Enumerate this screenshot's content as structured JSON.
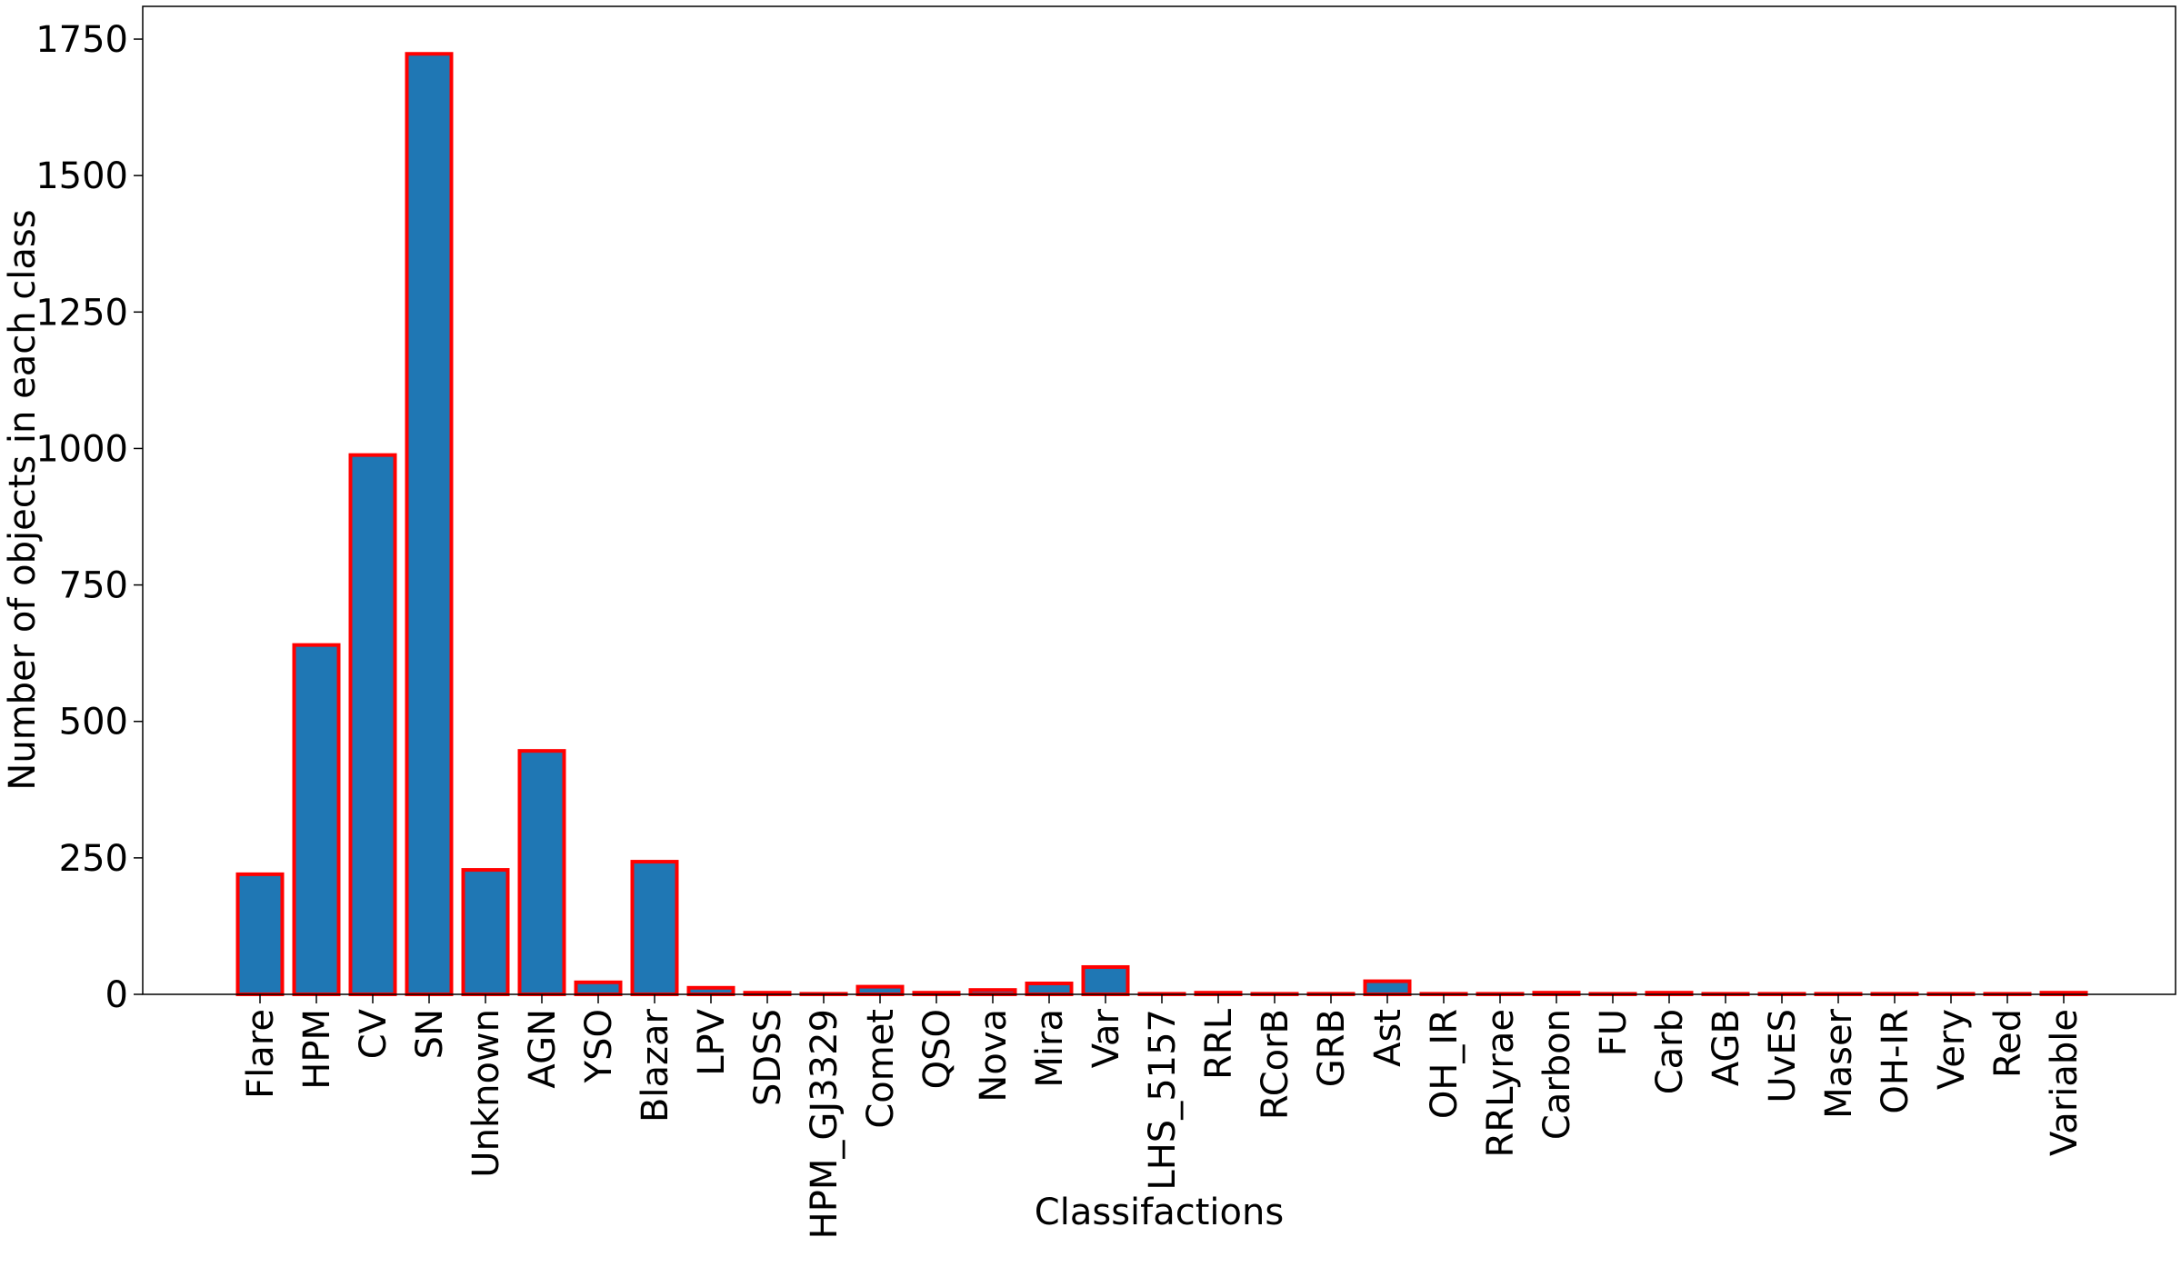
{
  "chart_data": {
    "type": "bar",
    "title": "",
    "xlabel": "Classifactions",
    "ylabel": "Number of objects in each class",
    "ylim": [
      0,
      1810
    ],
    "yticks": [
      0,
      250,
      500,
      750,
      1000,
      1250,
      1500,
      1750
    ],
    "grid": false,
    "colors": {
      "bar_fill": "#1f77b4",
      "bar_edge": "#ff0000"
    },
    "categories": [
      "Flare",
      "HPM",
      "CV",
      "SN",
      "Unknown",
      "AGN",
      "YSO",
      "Blazar",
      "LPV",
      "SDSS",
      "HPM_GJ3329",
      "Comet",
      "QSO",
      "Nova",
      "Mira",
      "Var",
      "LHS_5157",
      "RRL",
      "RCorB",
      "GRB",
      "Ast",
      "OH_IR",
      "RRLyrae",
      "Carbon",
      "FU",
      "Carb",
      "AGB",
      "UvES",
      "Maser",
      "OH-IR",
      "Very",
      "Red",
      "Variable"
    ],
    "values": [
      220,
      640,
      988,
      1723,
      228,
      446,
      22,
      243,
      12,
      3,
      1,
      14,
      3,
      8,
      20,
      50,
      1,
      3,
      1,
      1,
      24,
      1,
      1,
      3,
      1,
      3,
      1,
      1,
      1,
      1,
      1,
      1,
      3
    ]
  }
}
